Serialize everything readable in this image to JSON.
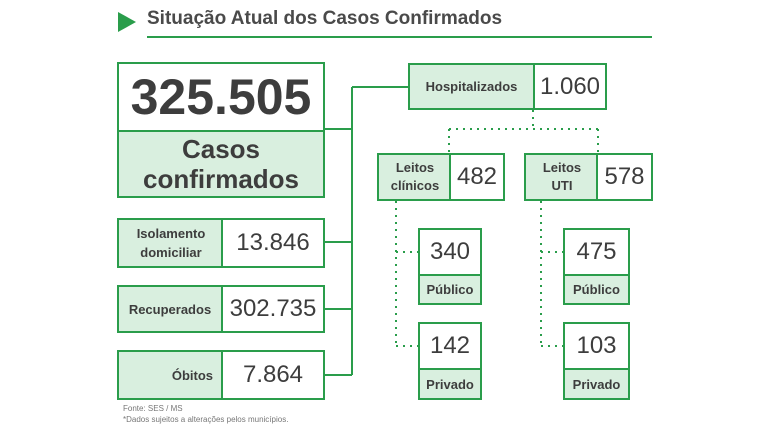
{
  "header": {
    "title": "Situação Atual dos Casos Confirmados"
  },
  "confirmed": {
    "value": "325.505",
    "label_line1": "Casos",
    "label_line2": "confirmados"
  },
  "isolation": {
    "label_line1": "Isolamento",
    "label_line2": "domiciliar",
    "value": "13.846"
  },
  "recovered": {
    "label": "Recuperados",
    "value": "302.735"
  },
  "deaths": {
    "label": "Óbitos",
    "value": "7.864"
  },
  "hospitalized": {
    "label": "Hospitalizados",
    "value": "1.060"
  },
  "clinical_beds": {
    "label_line1": "Leitos",
    "label_line2": "clínicos",
    "value": "482",
    "public": {
      "value": "340",
      "label": "Público"
    },
    "private": {
      "value": "142",
      "label": "Privado"
    }
  },
  "icu_beds": {
    "label_line1": "Leitos",
    "label_line2": "UTI",
    "value": "578",
    "public": {
      "value": "475",
      "label": "Público"
    },
    "private": {
      "value": "103",
      "label": "Privado"
    }
  },
  "footer": {
    "source": "Fonte: SES / MS",
    "note": "*Dados sujeitos a alterações pelos municípios."
  },
  "colors": {
    "accent": "#2a9d4b",
    "light_fill": "#d9efdf"
  }
}
